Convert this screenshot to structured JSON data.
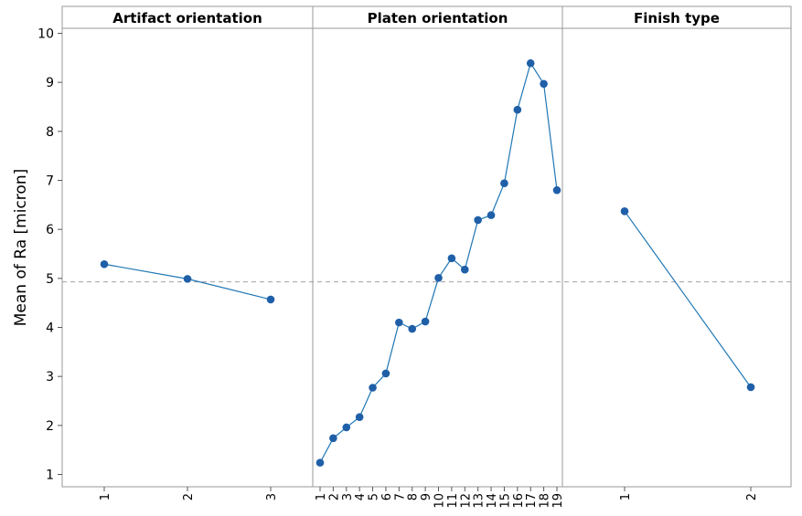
{
  "chart_data": {
    "type": "line",
    "ylabel": "Mean of Ra [micron]",
    "ylim": [
      1,
      10
    ],
    "yticks": [
      1,
      2,
      3,
      4,
      5,
      6,
      7,
      8,
      9,
      10
    ],
    "reference_line": 4.93,
    "colors": {
      "series": "#1f77b4",
      "marker": "#1f5fa8",
      "reference": "#a0a0a0",
      "frame": "#9a9a9a",
      "header_bg": "#ffffff"
    },
    "panels": [
      {
        "title": "Artifact orientation",
        "categories": [
          "1",
          "2",
          "3"
        ],
        "values": [
          5.29,
          4.99,
          4.57
        ]
      },
      {
        "title": "Platen orientation",
        "categories": [
          "1",
          "2",
          "3",
          "4",
          "5",
          "6",
          "7",
          "8",
          "9",
          "10",
          "11",
          "12",
          "13",
          "14",
          "15",
          "16",
          "17",
          "18",
          "19"
        ],
        "values": [
          1.24,
          1.74,
          1.96,
          2.17,
          2.77,
          3.06,
          4.1,
          3.97,
          4.12,
          5.01,
          5.41,
          5.18,
          6.19,
          6.29,
          6.94,
          8.44,
          9.39,
          8.97,
          6.8
        ]
      },
      {
        "title": "Finish type",
        "categories": [
          "1",
          "2"
        ],
        "values": [
          6.37,
          2.78
        ]
      }
    ]
  }
}
